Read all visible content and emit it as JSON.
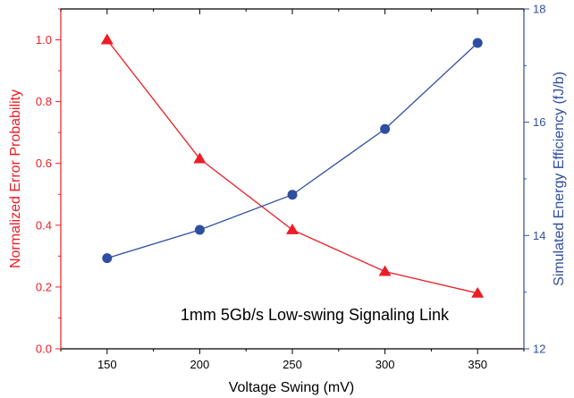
{
  "chart_data": {
    "type": "line",
    "annotation": "1mm 5Gb/s Low-swing Signaling Link",
    "xlabel": "Voltage Swing (mV)",
    "ylabel_left": "Normalized Error Probability",
    "ylabel_right": "Simulated Energy Efficiency (fJ/b)",
    "x": [
      150,
      200,
      250,
      300,
      350
    ],
    "xlim": [
      125,
      375
    ],
    "xticks": [
      150,
      200,
      250,
      300,
      350
    ],
    "ylim_left": [
      0.0,
      1.1
    ],
    "yticks_left": [
      "0.0",
      "0.2",
      "0.4",
      "0.6",
      "0.8",
      "1.0"
    ],
    "ylim_right": [
      12,
      18
    ],
    "yticks_right": [
      "12",
      "14",
      "16",
      "18"
    ],
    "grid": false,
    "series": [
      {
        "axis": "left",
        "marker": "triangle",
        "color": "#ee1c24",
        "values": [
          1.0,
          0.615,
          0.385,
          0.25,
          0.18
        ]
      },
      {
        "axis": "right",
        "marker": "circle",
        "color": "#2e4ea1",
        "values": [
          13.6,
          14.1,
          14.72,
          15.88,
          17.4
        ]
      }
    ]
  }
}
